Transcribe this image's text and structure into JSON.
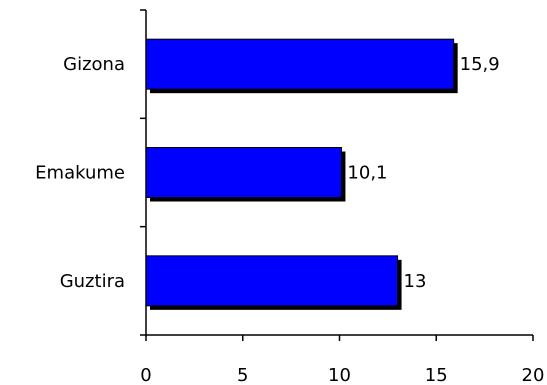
{
  "chart_data": {
    "type": "bar",
    "orientation": "horizontal",
    "categories": [
      "Gizona",
      "Emakume",
      "Guztira"
    ],
    "values": [
      15.9,
      10.1,
      13
    ],
    "value_labels": [
      "15,9",
      "10,1",
      "13"
    ],
    "xlim": [
      0,
      20
    ],
    "xticks": [
      0,
      5,
      10,
      15,
      20
    ],
    "xtick_labels": [
      "0",
      "5",
      "10",
      "15",
      "20"
    ],
    "grid": false,
    "bar_color": "#0000ff",
    "shadow_color": "#000000"
  }
}
